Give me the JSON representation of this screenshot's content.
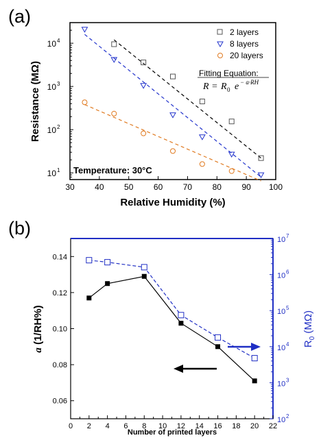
{
  "chart_data": [
    {
      "id": "a",
      "panel_label": "(a)",
      "type": "scatter",
      "xlabel": "Relative Humidity (%)",
      "ylabel": "Resistance (MΩ)",
      "xlim": [
        30,
        100
      ],
      "ylim": [
        7,
        30000
      ],
      "yscale": "log",
      "xticks": [
        "30",
        "40",
        "50",
        "60",
        "70",
        "80",
        "90",
        "100"
      ],
      "yticks": [
        {
          "value": 10,
          "label": "10",
          "exp": "1"
        },
        {
          "value": 100,
          "label": "10",
          "exp": "2"
        },
        {
          "value": 1000,
          "label": "10",
          "exp": "3"
        },
        {
          "value": 10000,
          "label": "10",
          "exp": "4"
        }
      ],
      "series": [
        {
          "name": "2 layers",
          "marker": "square",
          "color": "#555555",
          "x": [
            45,
            55,
            65,
            75,
            85,
            95
          ],
          "y": [
            9500,
            3600,
            1700,
            450,
            155,
            22
          ],
          "fit": {
            "x": [
              45,
              95
            ],
            "y": [
              12000,
              22
            ],
            "color": "#000000"
          }
        },
        {
          "name": "8 layers",
          "marker": "triangle-down",
          "color": "#2233cc",
          "x": [
            35,
            45,
            55,
            65,
            75,
            85,
            95
          ],
          "y": [
            21000,
            4200,
            1050,
            220,
            68,
            27,
            9
          ],
          "fit": {
            "x": [
              35,
              95
            ],
            "y": [
              16000,
              8
            ],
            "color": "#2233cc"
          }
        },
        {
          "name": "20 layers",
          "marker": "circle",
          "color": "#e07a20",
          "x": [
            35,
            45,
            55,
            65,
            75,
            85
          ],
          "y": [
            430,
            235,
            82,
            32,
            16,
            11
          ],
          "fit": {
            "x": [
              35,
              95
            ],
            "y": [
              380,
              6.5
            ],
            "color": "#e07a20"
          }
        }
      ],
      "legend_position": "top-right",
      "annotations": {
        "fitting_label": "Fitting Equation:",
        "equation_lhs": "R",
        "equation_rhs": "R",
        "equation_sub": "0",
        "equation_base": "e",
        "equation_exp": "− a·RH",
        "temperature": "Temperature: 30°C"
      }
    },
    {
      "id": "b",
      "panel_label": "(b)",
      "type": "line",
      "xlabel": "Number of printed layers",
      "ylabel_left_prefix": "a",
      "ylabel_left_suffix": " (1/RH%)",
      "ylabel_right": "R",
      "ylabel_right_sub": "0",
      "ylabel_right_unit": " (MΩ)",
      "xlim": [
        0,
        22
      ],
      "ylim_left": [
        0.05,
        0.15
      ],
      "ylim_right": [
        100,
        10000000
      ],
      "yscale_right": "log",
      "xticks": [
        "0",
        "2",
        "4",
        "6",
        "8",
        "10",
        "12",
        "14",
        "16",
        "18",
        "20",
        "22"
      ],
      "yticks_left": [
        "0.06",
        "0.08",
        "0.10",
        "0.12",
        "0.14"
      ],
      "yticks_right": [
        {
          "value": 100,
          "label": "10",
          "exp": "2"
        },
        {
          "value": 1000,
          "label": "10",
          "exp": "3"
        },
        {
          "value": 10000,
          "label": "10",
          "exp": "4"
        },
        {
          "value": 100000,
          "label": "10",
          "exp": "5"
        },
        {
          "value": 1000000,
          "label": "10",
          "exp": "6"
        },
        {
          "value": 10000000,
          "label": "10",
          "exp": "7"
        }
      ],
      "series": [
        {
          "axis": "left",
          "marker": "filled-square",
          "color": "#000000",
          "line": "solid",
          "x": [
            2,
            4,
            8,
            12,
            16,
            20
          ],
          "y": [
            0.117,
            0.125,
            0.129,
            0.103,
            0.09,
            0.071
          ]
        },
        {
          "axis": "right",
          "marker": "open-square",
          "color": "#1f2ec4",
          "line": "dashed",
          "x": [
            2,
            4,
            8,
            12,
            16,
            20
          ],
          "y": [
            2500000,
            2200000,
            1600000,
            75000,
            18000,
            4800
          ]
        }
      ],
      "arrows": [
        {
          "points_to": "left",
          "color": "#000000"
        },
        {
          "points_to": "right",
          "color": "#1f2ec4"
        }
      ]
    }
  ]
}
